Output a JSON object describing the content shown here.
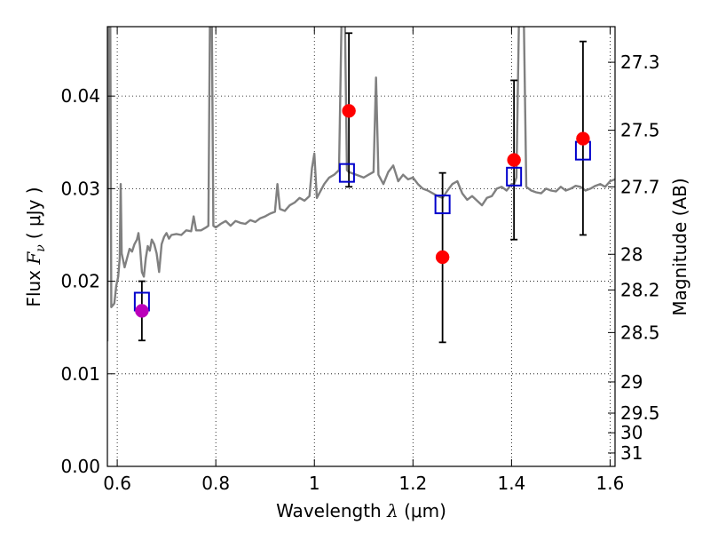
{
  "chart_data": {
    "type": "scatter",
    "xlabel": {
      "text": "Wavelength",
      "symbol": "λ",
      "unit": "(μm)"
    },
    "ylabel": {
      "text": "Flux",
      "symbol": "F",
      "subscript": "ν",
      "unit": "( μJy )"
    },
    "y2label": "Magnitude (AB)",
    "xlim": [
      0.58,
      1.61
    ],
    "ylim": [
      0.0,
      0.0475
    ],
    "grid": true,
    "x_ticks": [
      {
        "value": 0.6,
        "label": "0.6"
      },
      {
        "value": 0.8,
        "label": "0.8"
      },
      {
        "value": 1.0,
        "label": "1"
      },
      {
        "value": 1.2,
        "label": "1.2"
      },
      {
        "value": 1.4,
        "label": "1.4"
      },
      {
        "value": 1.6,
        "label": "1.6"
      }
    ],
    "y_ticks": [
      {
        "value": 0.0,
        "label": "0.00"
      },
      {
        "value": 0.01,
        "label": "0.01"
      },
      {
        "value": 0.02,
        "label": "0.02"
      },
      {
        "value": 0.03,
        "label": "0.03"
      },
      {
        "value": 0.04,
        "label": "0.04"
      }
    ],
    "y2_ticks": [
      {
        "value": 27.3,
        "label": "27.3"
      },
      {
        "value": 27.5,
        "label": "27.5"
      },
      {
        "value": 27.7,
        "label": "27.7"
      },
      {
        "value": 28.0,
        "label": "28"
      },
      {
        "value": 28.2,
        "label": "28.2"
      },
      {
        "value": 28.5,
        "label": "28.5"
      },
      {
        "value": 29.0,
        "label": "29"
      },
      {
        "value": 29.5,
        "label": "29.5"
      },
      {
        "value": 30.0,
        "label": "30"
      },
      {
        "value": 31.0,
        "label": "31"
      }
    ],
    "series": [
      {
        "kind": "line",
        "color": "#808080",
        "points": [
          [
            0.58,
            0.0135
          ],
          [
            0.583,
            0.048
          ],
          [
            0.586,
            0.048
          ],
          [
            0.588,
            0.0172
          ],
          [
            0.594,
            0.0176
          ],
          [
            0.598,
            0.0195
          ],
          [
            0.602,
            0.0205
          ],
          [
            0.605,
            0.0225
          ],
          [
            0.607,
            0.0305
          ],
          [
            0.609,
            0.023
          ],
          [
            0.615,
            0.0215
          ],
          [
            0.62,
            0.0225
          ],
          [
            0.625,
            0.0235
          ],
          [
            0.63,
            0.0232
          ],
          [
            0.635,
            0.024
          ],
          [
            0.64,
            0.0245
          ],
          [
            0.643,
            0.0252
          ],
          [
            0.646,
            0.0238
          ],
          [
            0.65,
            0.021
          ],
          [
            0.654,
            0.0205
          ],
          [
            0.658,
            0.0225
          ],
          [
            0.662,
            0.0238
          ],
          [
            0.666,
            0.0233
          ],
          [
            0.67,
            0.0245
          ],
          [
            0.675,
            0.024
          ],
          [
            0.68,
            0.023
          ],
          [
            0.685,
            0.021
          ],
          [
            0.69,
            0.024
          ],
          [
            0.695,
            0.0248
          ],
          [
            0.7,
            0.0252
          ],
          [
            0.705,
            0.0246
          ],
          [
            0.71,
            0.025
          ],
          [
            0.72,
            0.0251
          ],
          [
            0.73,
            0.025
          ],
          [
            0.74,
            0.0255
          ],
          [
            0.75,
            0.0254
          ],
          [
            0.755,
            0.027
          ],
          [
            0.76,
            0.0255
          ],
          [
            0.77,
            0.0255
          ],
          [
            0.78,
            0.0258
          ],
          [
            0.785,
            0.026
          ],
          [
            0.788,
            0.048
          ],
          [
            0.792,
            0.048
          ],
          [
            0.795,
            0.026
          ],
          [
            0.8,
            0.0258
          ],
          [
            0.81,
            0.0262
          ],
          [
            0.82,
            0.0265
          ],
          [
            0.83,
            0.026
          ],
          [
            0.84,
            0.0265
          ],
          [
            0.85,
            0.0263
          ],
          [
            0.86,
            0.0262
          ],
          [
            0.87,
            0.0266
          ],
          [
            0.88,
            0.0264
          ],
          [
            0.89,
            0.0268
          ],
          [
            0.9,
            0.027
          ],
          [
            0.91,
            0.0273
          ],
          [
            0.92,
            0.0275
          ],
          [
            0.925,
            0.0305
          ],
          [
            0.93,
            0.0278
          ],
          [
            0.94,
            0.0276
          ],
          [
            0.95,
            0.0282
          ],
          [
            0.96,
            0.0285
          ],
          [
            0.97,
            0.029
          ],
          [
            0.98,
            0.0287
          ],
          [
            0.99,
            0.0292
          ],
          [
            0.995,
            0.0322
          ],
          [
            1.0,
            0.0338
          ],
          [
            1.005,
            0.029
          ],
          [
            1.01,
            0.0295
          ],
          [
            1.02,
            0.0305
          ],
          [
            1.03,
            0.0312
          ],
          [
            1.04,
            0.0315
          ],
          [
            1.05,
            0.032
          ],
          [
            1.055,
            0.048
          ],
          [
            1.062,
            0.048
          ],
          [
            1.066,
            0.032
          ],
          [
            1.07,
            0.0318
          ],
          [
            1.08,
            0.0316
          ],
          [
            1.09,
            0.0314
          ],
          [
            1.1,
            0.0312
          ],
          [
            1.11,
            0.0315
          ],
          [
            1.12,
            0.0318
          ],
          [
            1.125,
            0.042
          ],
          [
            1.13,
            0.0315
          ],
          [
            1.14,
            0.0305
          ],
          [
            1.15,
            0.0318
          ],
          [
            1.16,
            0.0325
          ],
          [
            1.17,
            0.0308
          ],
          [
            1.18,
            0.0315
          ],
          [
            1.19,
            0.031
          ],
          [
            1.2,
            0.0312
          ],
          [
            1.21,
            0.0305
          ],
          [
            1.22,
            0.03
          ],
          [
            1.23,
            0.0298
          ],
          [
            1.24,
            0.0295
          ],
          [
            1.25,
            0.0292
          ],
          [
            1.26,
            0.029
          ],
          [
            1.27,
            0.0298
          ],
          [
            1.28,
            0.0305
          ],
          [
            1.29,
            0.0308
          ],
          [
            1.3,
            0.0295
          ],
          [
            1.31,
            0.0288
          ],
          [
            1.32,
            0.0292
          ],
          [
            1.33,
            0.0287
          ],
          [
            1.34,
            0.0282
          ],
          [
            1.35,
            0.029
          ],
          [
            1.36,
            0.0292
          ],
          [
            1.37,
            0.03
          ],
          [
            1.38,
            0.0302
          ],
          [
            1.39,
            0.0298
          ],
          [
            1.4,
            0.0305
          ],
          [
            1.405,
            0.0305
          ],
          [
            1.41,
            0.0312
          ],
          [
            1.415,
            0.048
          ],
          [
            1.425,
            0.048
          ],
          [
            1.43,
            0.0302
          ],
          [
            1.44,
            0.0298
          ],
          [
            1.45,
            0.0296
          ],
          [
            1.46,
            0.0295
          ],
          [
            1.47,
            0.03
          ],
          [
            1.48,
            0.0298
          ],
          [
            1.49,
            0.0297
          ],
          [
            1.5,
            0.0302
          ],
          [
            1.51,
            0.0298
          ],
          [
            1.52,
            0.03
          ],
          [
            1.53,
            0.0303
          ],
          [
            1.54,
            0.0302
          ],
          [
            1.55,
            0.0298
          ],
          [
            1.56,
            0.03
          ],
          [
            1.57,
            0.0303
          ],
          [
            1.58,
            0.0305
          ],
          [
            1.59,
            0.0302
          ],
          [
            1.6,
            0.0308
          ],
          [
            1.61,
            0.031
          ]
        ]
      },
      {
        "kind": "squares",
        "color": "#0000cc",
        "points": [
          [
            0.65,
            0.0178
          ],
          [
            1.066,
            0.0317
          ],
          [
            1.26,
            0.0283
          ],
          [
            1.405,
            0.0313
          ],
          [
            1.545,
            0.0341
          ]
        ]
      },
      {
        "kind": "circles",
        "color": "#ff0000",
        "points": [
          [
            1.07,
            0.0384
          ],
          [
            1.26,
            0.0226
          ],
          [
            1.405,
            0.0331
          ],
          [
            1.545,
            0.0354
          ]
        ]
      },
      {
        "kind": "circles",
        "color": "#bb00bb",
        "points": [
          [
            0.65,
            0.0168
          ]
        ]
      }
    ],
    "error_bars": {
      "color": "#000000",
      "items": [
        {
          "x": 0.65,
          "low": 0.0136,
          "high": 0.02
        },
        {
          "x": 1.07,
          "low": 0.0302,
          "high": 0.0468
        },
        {
          "x": 1.26,
          "low": 0.0134,
          "high": 0.0317
        },
        {
          "x": 1.405,
          "low": 0.0245,
          "high": 0.0417
        },
        {
          "x": 1.545,
          "low": 0.025,
          "high": 0.0459
        }
      ]
    }
  }
}
